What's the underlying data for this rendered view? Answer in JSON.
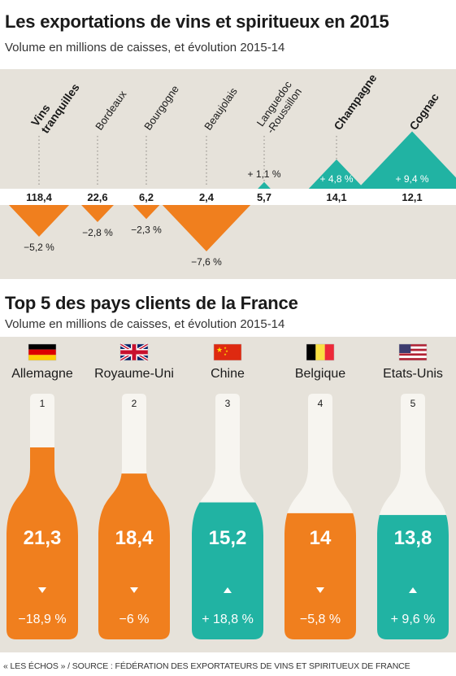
{
  "header1": {
    "title": "Les exportations de vins et spiritueux en 2015",
    "subtitle": "Volume en millions de caisses, et évolution 2015-14"
  },
  "header2": {
    "title": "Top 5 des pays clients de la France",
    "subtitle": "Volume en millions de caisses, et évolution 2015-14"
  },
  "footer": "« LES ÉCHOS » / SOURCE : FÉDÉRATION DES EXPORTATEURS DE VINS ET SPIRITUEUX DE FRANCE",
  "colors": {
    "decline": "#f07f1e",
    "growth": "#21b3a3",
    "panel": "#e6e2da",
    "bottle": "#f7f5f0"
  },
  "chart_data": [
    {
      "type": "bar",
      "title": "Les exportations de vins et spiritueux en 2015",
      "subtitle": "Volume en millions de caisses, et évolution 2015-14",
      "categories": [
        "Vins tranquilles",
        "Bordeaux",
        "Bourgogne",
        "Beaujolais",
        "Languedoc -Roussillon",
        "Champagne",
        "Cognac"
      ],
      "series": [
        {
          "values": [
            118.4,
            22.6,
            6.2,
            2.4,
            5.7,
            14.1,
            12.1
          ]
        },
        {
          "values": [
            -5.2,
            -2.8,
            -2.3,
            -7.6,
            1.1,
            4.8,
            9.4
          ]
        }
      ],
      "value_labels": [
        "118,4",
        "22,6",
        "6,2",
        "2,4",
        "5,7",
        "14,1",
        "12,1"
      ],
      "change_labels": [
        "−5,2 %",
        "−2,8 %",
        "−2,3 %",
        "−7,6 %",
        "+ 1,1 %",
        "+ 4,8 %",
        "+ 9,4 %"
      ],
      "bold_labels": [
        true,
        false,
        false,
        false,
        false,
        true,
        true
      ]
    },
    {
      "type": "bar",
      "title": "Top 5 des pays clients de la France",
      "subtitle": "Volume en millions de caisses, et évolution 2015-14",
      "categories": [
        "Allemagne",
        "Royaume-Uni",
        "Chine",
        "Belgique",
        "Etats-Unis"
      ],
      "ranks": [
        "1",
        "2",
        "3",
        "4",
        "5"
      ],
      "flags": [
        "germany-flag-icon",
        "uk-flag-icon",
        "china-flag-icon",
        "belgium-flag-icon",
        "usa-flag-icon"
      ],
      "series": [
        {
          "values": [
            21.3,
            18.4,
            15.2,
            14,
            13.8
          ]
        },
        {
          "values": [
            -18.9,
            -6,
            18.8,
            -5.8,
            9.6
          ]
        }
      ],
      "value_labels": [
        "21,3",
        "18,4",
        "15,2",
        "14",
        "13,8"
      ],
      "change_labels": [
        "−18,9 %",
        "−6 %",
        "+ 18,8 %",
        "−5,8 %",
        "+ 9,6 %"
      ]
    }
  ]
}
